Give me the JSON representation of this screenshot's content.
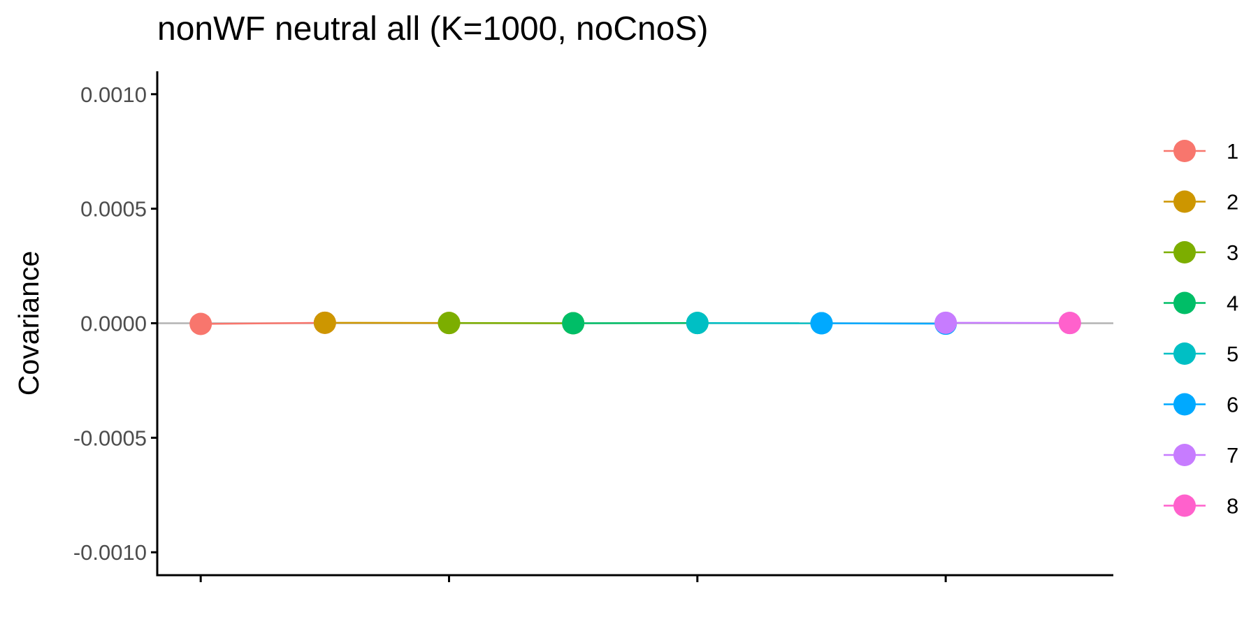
{
  "chart_data": {
    "type": "line",
    "title": "nonWF neutral all (K=1000, noCnoS)",
    "xlabel": "",
    "ylabel": "Covariance",
    "ylim": [
      -0.0011,
      0.0011
    ],
    "yticks": [
      0.001,
      0.0005,
      0.0,
      -0.0005,
      -0.001
    ],
    "ytick_labels": [
      "0.0010",
      "0.0005",
      "0.0000",
      "-0.0005",
      "-0.0010"
    ],
    "xlim": [
      0.65,
      8.35
    ],
    "xticks": [
      1,
      3,
      5,
      7
    ],
    "xtick_labels": [
      "",
      "",
      "",
      ""
    ],
    "hline": 0,
    "grid": false,
    "legend_position": "right",
    "series": [
      {
        "name": "1",
        "color": "#F8766D",
        "x": [
          1,
          2
        ],
        "values": [
          -3e-06,
          2e-06
        ]
      },
      {
        "name": "2",
        "color": "#CD9600",
        "x": [
          2,
          3
        ],
        "values": [
          2e-06,
          1e-06
        ]
      },
      {
        "name": "3",
        "color": "#7CAE00",
        "x": [
          3,
          4
        ],
        "values": [
          1e-06,
          0.0
        ]
      },
      {
        "name": "4",
        "color": "#00BE67",
        "x": [
          4,
          5
        ],
        "values": [
          0.0,
          1e-06
        ]
      },
      {
        "name": "5",
        "color": "#00BFC4",
        "x": [
          5,
          6
        ],
        "values": [
          1e-06,
          0.0
        ]
      },
      {
        "name": "6",
        "color": "#00A9FF",
        "x": [
          6,
          7
        ],
        "values": [
          0.0,
          -2e-06
        ]
      },
      {
        "name": "7",
        "color": "#C77CFF",
        "x": [
          7,
          8
        ],
        "values": [
          2e-06,
          1e-06
        ]
      },
      {
        "name": "8",
        "color": "#FF61CC",
        "x": [
          8
        ],
        "values": [
          1e-06
        ]
      }
    ]
  }
}
